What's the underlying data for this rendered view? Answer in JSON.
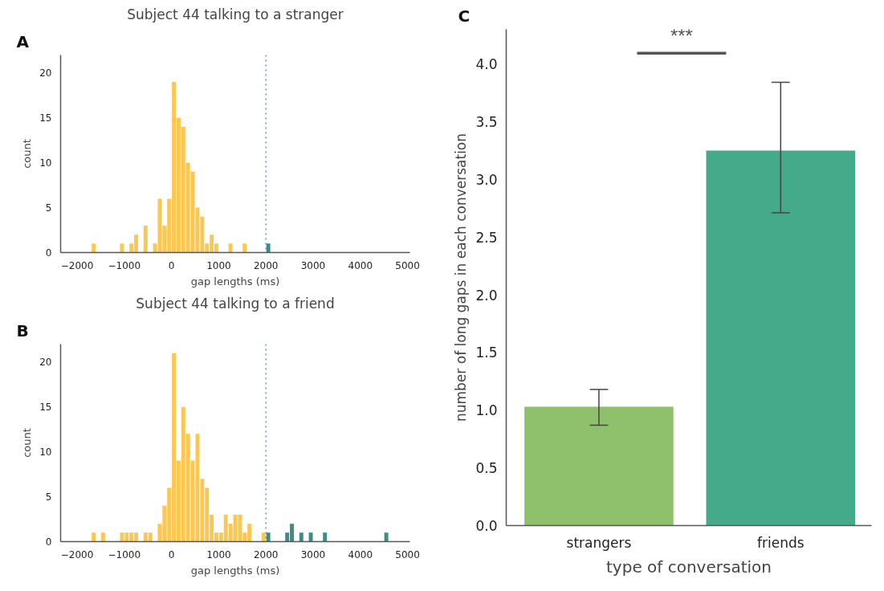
{
  "chart_data": [
    {
      "type": "histogram",
      "title": "Subject 44 talking to a stranger",
      "xlabel": "gap lengths (ms)",
      "ylabel": "count",
      "annotations": [
        "A"
      ],
      "bins": [
        -1700,
        -1600,
        -1500,
        -1400,
        -1300,
        -1200,
        -1100,
        -1000,
        -900,
        -800,
        -700,
        -600,
        -500,
        -400,
        -300,
        -200,
        -100,
        0,
        100,
        200,
        300,
        400,
        500,
        600,
        700,
        800,
        900,
        1000,
        1100,
        1200,
        1300,
        1400,
        1500,
        1600,
        1700,
        1800,
        1900,
        2000,
        2100
      ],
      "values": [
        1,
        0,
        0,
        0,
        0,
        0,
        1,
        0,
        1,
        2,
        0,
        3,
        0,
        1,
        6,
        3,
        6,
        19,
        15,
        14,
        10,
        9,
        5,
        4,
        1,
        2,
        1,
        0,
        0,
        1,
        0,
        0,
        1,
        0,
        0,
        0,
        0,
        1
      ],
      "colors": [
        "#fcc751",
        "#fcc751",
        "#fcc751",
        "#fcc751",
        "#fcc751",
        "#fcc751",
        "#fcc751",
        "#fcc751",
        "#fcc751",
        "#fcc751",
        "#fcc751",
        "#fcc751",
        "#fcc751",
        "#fcc751",
        "#fcc751",
        "#fcc751",
        "#fcc751",
        "#fcc751",
        "#fcc751",
        "#fcc751",
        "#fcc751",
        "#fcc751",
        "#fcc751",
        "#fcc751",
        "#fcc751",
        "#fcc751",
        "#fcc751",
        "#fcc751",
        "#fcc751",
        "#fcc751",
        "#fcc751",
        "#fcc751",
        "#fcc751",
        "#fcc751",
        "#fcc751",
        "#fcc751",
        "#fcc751",
        "#3d8c88"
      ],
      "xlim": [
        -2350,
        5050
      ],
      "xticks": [
        -2000,
        -1000,
        0,
        1000,
        2000,
        3000,
        4000,
        5000
      ],
      "ylim": [
        0,
        22
      ],
      "yticks": [
        0,
        5,
        10,
        15,
        20
      ],
      "grid": false,
      "ref_lines": [
        {
          "axis": "x",
          "value": 2000,
          "color": "#4a9cc4",
          "line_style": "dotted"
        }
      ]
    },
    {
      "type": "histogram",
      "title": "Subject 44 talking to a friend",
      "xlabel": "gap lengths (ms)",
      "ylabel": "count",
      "annotations": [
        "B"
      ],
      "bins": [
        -1700,
        -1600,
        -1500,
        -1400,
        -1300,
        -1200,
        -1100,
        -1000,
        -900,
        -800,
        -700,
        -600,
        -500,
        -400,
        -300,
        -200,
        -100,
        0,
        100,
        200,
        300,
        400,
        500,
        600,
        700,
        800,
        900,
        1000,
        1100,
        1200,
        1300,
        1400,
        1500,
        1600,
        1700,
        1800,
        1900,
        2000,
        2100,
        2200,
        2300,
        2400,
        2500,
        2600,
        2700,
        2800,
        2900,
        3000,
        3100,
        3200,
        3300,
        3400,
        3500,
        3600,
        3700,
        3800,
        3900,
        4000,
        4100,
        4200,
        4300,
        4400,
        4500,
        4600
      ],
      "values": [
        1,
        0,
        1,
        0,
        0,
        0,
        1,
        1,
        1,
        1,
        0,
        1,
        1,
        0,
        2,
        4,
        6,
        21,
        9,
        15,
        12,
        9,
        12,
        7,
        6,
        3,
        1,
        1,
        3,
        2,
        3,
        3,
        1,
        2,
        0,
        0,
        1,
        1,
        0,
        0,
        0,
        1,
        2,
        0,
        1,
        0,
        1,
        0,
        0,
        1,
        0,
        0,
        0,
        0,
        0,
        0,
        0,
        0,
        0,
        0,
        0,
        0,
        1
      ],
      "colors": [
        "#fcc751",
        "#fcc751",
        "#fcc751",
        "#fcc751",
        "#fcc751",
        "#fcc751",
        "#fcc751",
        "#fcc751",
        "#fcc751",
        "#fcc751",
        "#fcc751",
        "#fcc751",
        "#fcc751",
        "#fcc751",
        "#fcc751",
        "#fcc751",
        "#fcc751",
        "#fcc751",
        "#fcc751",
        "#fcc751",
        "#fcc751",
        "#fcc751",
        "#fcc751",
        "#fcc751",
        "#fcc751",
        "#fcc751",
        "#fcc751",
        "#fcc751",
        "#fcc751",
        "#fcc751",
        "#fcc751",
        "#fcc751",
        "#fcc751",
        "#fcc751",
        "#fcc751",
        "#fcc751",
        "#fcc751",
        "#3d8c88",
        "#3d8c88",
        "#3d8c88",
        "#3d8c88",
        "#3d8c88",
        "#3d8c88",
        "#3d8c88",
        "#3d8c88",
        "#3d8c88",
        "#3d8c88",
        "#3d8c88",
        "#3d8c88",
        "#3d8c88",
        "#3d8c88",
        "#3d8c88",
        "#3d8c88",
        "#3d8c88",
        "#3d8c88",
        "#3d8c88",
        "#3d8c88",
        "#3d8c88",
        "#3d8c88",
        "#3d8c88",
        "#3d8c88",
        "#3d8c88",
        "#3d8c88"
      ],
      "xlim": [
        -2350,
        5050
      ],
      "xticks": [
        -2000,
        -1000,
        0,
        1000,
        2000,
        3000,
        4000,
        5000
      ],
      "ylim": [
        0,
        22
      ],
      "yticks": [
        0,
        5,
        10,
        15,
        20
      ],
      "grid": false,
      "ref_lines": [
        {
          "axis": "x",
          "value": 2000,
          "color": "#4a9cc4",
          "line_style": "dotted"
        }
      ]
    },
    {
      "type": "bar",
      "xlabel": "type of conversation",
      "ylabel": "number of long gaps in each conversation",
      "annotations": [
        "C",
        "***"
      ],
      "categories": [
        "strangers",
        "friends"
      ],
      "values": [
        1.03,
        3.25
      ],
      "colors": [
        "#8fc06b",
        "#45aa89"
      ],
      "errors": [
        [
          0.87,
          1.18
        ],
        [
          2.71,
          3.84
        ]
      ],
      "ylim": [
        0,
        4.3
      ],
      "yticks": [
        {
          "value": 0,
          "label": "0.0"
        },
        {
          "value": 0.5,
          "label": "0.5"
        },
        {
          "value": 1,
          "label": "1.0"
        },
        {
          "value": 1.5,
          "label": "1.5"
        },
        {
          "value": 2,
          "label": "2.0"
        },
        {
          "value": 2.5,
          "label": "2.5"
        },
        {
          "value": 3,
          "label": "3.0"
        },
        {
          "value": 3.5,
          "label": "3.5"
        },
        {
          "value": 4,
          "label": "4.0"
        }
      ],
      "grid": false
    }
  ]
}
